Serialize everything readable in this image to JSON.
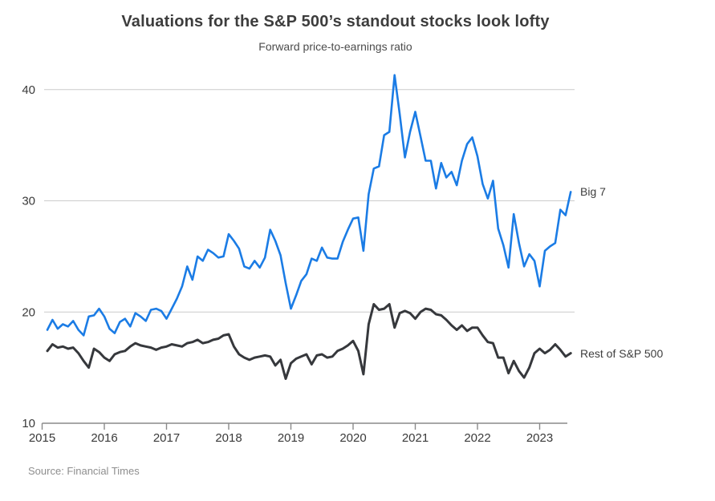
{
  "chart_data": {
    "type": "line",
    "title": "Valuations for the S&P 500’s standout stocks look lofty",
    "subtitle": "Forward price-to-earnings ratio",
    "source": "Source: Financial Times",
    "grid": "horizontal-only",
    "legend_position": "end-of-line-labels-right",
    "x_range": [
      2015.0833,
      2023.5
    ],
    "x_sampling": "monthly",
    "x_ticks": [
      2015,
      2016,
      2017,
      2018,
      2019,
      2020,
      2021,
      2022,
      2023
    ],
    "x_tick_labels": [
      "2015",
      "2016",
      "2017",
      "2018",
      "2019",
      "2020",
      "2021",
      "2022",
      "2023"
    ],
    "y_ticks": [
      10,
      20,
      30,
      40
    ],
    "y_tick_labels": [
      "10",
      "20",
      "30",
      "40"
    ],
    "ylim": [
      10,
      42
    ],
    "colors": {
      "big7": "#1b7ce5",
      "rest": "#36383c",
      "gridline": "#cccccc",
      "axis": "#8a8a8a"
    },
    "series": [
      {
        "name": "Big 7",
        "color": "#1b7ce5",
        "values": [
          18.4,
          19.3,
          18.5,
          18.9,
          18.7,
          19.2,
          18.4,
          17.9,
          19.6,
          19.7,
          20.3,
          19.6,
          18.5,
          18.1,
          19.1,
          19.4,
          18.7,
          19.9,
          19.6,
          19.2,
          20.2,
          20.3,
          20.1,
          19.4,
          20.3,
          21.2,
          22.3,
          24.1,
          22.9,
          25.0,
          24.6,
          25.6,
          25.3,
          24.9,
          25.0,
          27.0,
          26.4,
          25.7,
          24.1,
          23.9,
          24.6,
          24.0,
          24.9,
          27.4,
          26.4,
          25.1,
          22.6,
          20.3,
          21.5,
          22.8,
          23.4,
          24.8,
          24.6,
          25.8,
          24.9,
          24.8,
          24.8,
          26.3,
          27.4,
          28.4,
          28.5,
          25.5,
          30.6,
          32.9,
          33.1,
          35.9,
          36.2,
          41.3,
          37.8,
          33.9,
          36.2,
          38.0,
          35.8,
          33.6,
          33.6,
          31.1,
          33.4,
          32.1,
          32.6,
          31.4,
          33.6,
          35.1,
          35.7,
          34.0,
          31.5,
          30.2,
          31.8,
          27.5,
          26.0,
          24.0,
          28.8,
          26.2,
          24.1,
          25.2,
          24.6,
          22.3,
          25.5,
          25.9,
          26.2,
          29.2,
          28.7,
          30.8
        ]
      },
      {
        "name": "Rest of S&P 500",
        "color": "#36383c",
        "values": [
          16.5,
          17.1,
          16.8,
          16.9,
          16.7,
          16.8,
          16.3,
          15.6,
          15.0,
          16.7,
          16.4,
          15.9,
          15.6,
          16.2,
          16.4,
          16.5,
          16.9,
          17.2,
          17.0,
          16.9,
          16.8,
          16.6,
          16.8,
          16.9,
          17.1,
          17.0,
          16.9,
          17.2,
          17.3,
          17.5,
          17.2,
          17.3,
          17.5,
          17.6,
          17.9,
          18.0,
          16.9,
          16.2,
          15.9,
          15.7,
          15.9,
          16.0,
          16.1,
          16.0,
          15.2,
          15.7,
          14.0,
          15.4,
          15.8,
          16.0,
          16.2,
          15.3,
          16.1,
          16.2,
          15.9,
          16.0,
          16.5,
          16.7,
          17.0,
          17.4,
          16.5,
          14.4,
          18.9,
          20.7,
          20.2,
          20.3,
          20.7,
          18.6,
          19.9,
          20.1,
          19.9,
          19.4,
          20.0,
          20.3,
          20.2,
          19.8,
          19.7,
          19.3,
          18.8,
          18.4,
          18.8,
          18.3,
          18.6,
          18.6,
          17.9,
          17.3,
          17.2,
          15.9,
          15.9,
          14.5,
          15.6,
          14.7,
          14.1,
          15.0,
          16.3,
          16.7,
          16.3,
          16.6,
          17.1,
          16.6,
          16.0,
          16.3
        ]
      }
    ]
  },
  "labels": {
    "big7": "Big 7",
    "rest": "Rest of S&P 500"
  }
}
